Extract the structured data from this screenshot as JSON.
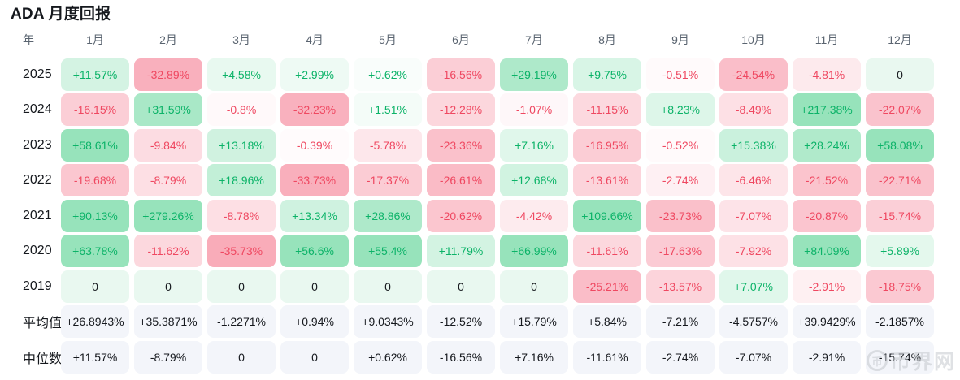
{
  "title": "ADA 月度回报",
  "chart_data": {
    "type": "heatmap",
    "title": "ADA 月度回报",
    "row_header": "年",
    "columns": [
      "1月",
      "2月",
      "3月",
      "4月",
      "5月",
      "6月",
      "7月",
      "8月",
      "9月",
      "10月",
      "11月",
      "12月"
    ],
    "rows": [
      {
        "label": "2025",
        "type": "year",
        "values": [
          "+11.57%",
          "-32.89%",
          "+4.58%",
          "+2.99%",
          "+0.62%",
          "-16.56%",
          "+29.19%",
          "+9.75%",
          "-0.51%",
          "-24.54%",
          "-4.81%",
          "0"
        ]
      },
      {
        "label": "2024",
        "type": "year",
        "values": [
          "-16.15%",
          "+31.59%",
          "-0.8%",
          "-32.23%",
          "+1.51%",
          "-12.28%",
          "-1.07%",
          "-11.15%",
          "+8.23%",
          "-8.49%",
          "+217.38%",
          "-22.07%"
        ]
      },
      {
        "label": "2023",
        "type": "year",
        "values": [
          "+58.61%",
          "-9.84%",
          "+13.18%",
          "-0.39%",
          "-5.78%",
          "-23.36%",
          "+7.16%",
          "-16.95%",
          "-0.52%",
          "+15.38%",
          "+28.24%",
          "+58.08%"
        ]
      },
      {
        "label": "2022",
        "type": "year",
        "values": [
          "-19.68%",
          "-8.79%",
          "+18.96%",
          "-33.73%",
          "-17.37%",
          "-26.61%",
          "+12.68%",
          "-13.61%",
          "-2.74%",
          "-6.46%",
          "-21.52%",
          "-22.71%"
        ]
      },
      {
        "label": "2021",
        "type": "year",
        "values": [
          "+90.13%",
          "+279.26%",
          "-8.78%",
          "+13.34%",
          "+28.86%",
          "-20.62%",
          "-4.42%",
          "+109.66%",
          "-23.73%",
          "-7.07%",
          "-20.87%",
          "-15.74%"
        ]
      },
      {
        "label": "2020",
        "type": "year",
        "values": [
          "+63.78%",
          "-11.62%",
          "-35.73%",
          "+56.6%",
          "+55.4%",
          "+11.79%",
          "+66.99%",
          "-11.61%",
          "-17.63%",
          "-7.92%",
          "+84.09%",
          "+5.89%"
        ]
      },
      {
        "label": "2019",
        "type": "year",
        "values": [
          "0",
          "0",
          "0",
          "0",
          "0",
          "0",
          "0",
          "-25.21%",
          "-13.57%",
          "+7.07%",
          "-2.91%",
          "-18.75%"
        ]
      },
      {
        "label": "平均值",
        "type": "summary",
        "values": [
          "+26.8943%",
          "+35.3871%",
          "-1.2271%",
          "+0.94%",
          "+9.0343%",
          "-12.52%",
          "+15.79%",
          "+5.84%",
          "-7.21%",
          "-4.5757%",
          "+39.9429%",
          "-2.1857%"
        ]
      },
      {
        "label": "中位数",
        "type": "summary",
        "values": [
          "+11.57%",
          "-8.79%",
          "0",
          "0",
          "+0.62%",
          "-16.56%",
          "+7.16%",
          "-11.61%",
          "-2.74%",
          "-7.07%",
          "-2.91%",
          "-15.74%"
        ]
      }
    ],
    "legend_position": "none",
    "grid": false
  },
  "colors": {
    "positive_text": "#0cb368",
    "negative_text": "#ef4861",
    "neutral_text": "#15181d",
    "positive_full_bg": "#97e3bb",
    "negative_full_bg": "#f8a2b1",
    "zero_bg": "#e9f8f0",
    "summary_bg": "#f3f5fa",
    "header_text": "#5a6470",
    "title_text": "#15181d",
    "watermark_gray": "#c5c9ce"
  },
  "watermark": {
    "icon": "coin-logo-icon",
    "icon_glyph": "币",
    "text": "币界网"
  }
}
